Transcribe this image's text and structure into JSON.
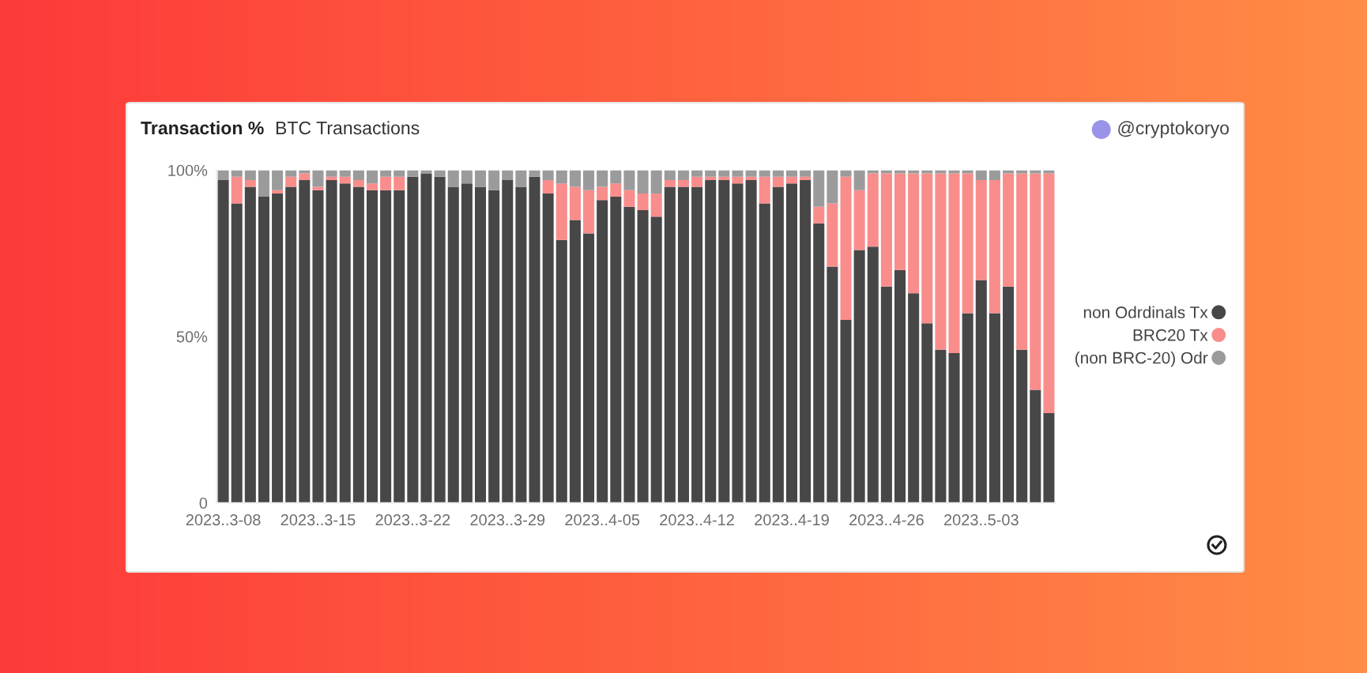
{
  "chart_data": {
    "type": "bar",
    "title": "Transaction %",
    "subtitle": "BTC Transactions",
    "annotations": [
      "@cryptokoryo"
    ],
    "categories": [
      "2023..3-08",
      null,
      null,
      null,
      null,
      null,
      null,
      "2023..3-15",
      null,
      null,
      null,
      null,
      null,
      null,
      "2023..3-22",
      null,
      null,
      null,
      null,
      null,
      null,
      "2023..3-29",
      null,
      null,
      null,
      null,
      null,
      null,
      "2023..4-05",
      null,
      null,
      null,
      null,
      null,
      null,
      "2023..4-12",
      null,
      null,
      null,
      null,
      null,
      null,
      "2023..4-19",
      null,
      null,
      null,
      null,
      null,
      null,
      "2023..4-26",
      null,
      null,
      null,
      null,
      null,
      null,
      "2023..5-03",
      null,
      null,
      null,
      null,
      null
    ],
    "series": [
      {
        "name": "non Odrdinals Tx",
        "color": "#474747",
        "values": [
          97,
          90,
          95,
          92,
          93,
          95,
          97,
          94,
          97,
          96,
          95,
          94,
          94,
          94,
          98,
          99,
          98,
          95,
          96,
          95,
          94,
          97,
          95,
          98,
          93,
          79,
          85,
          81,
          91,
          92,
          89,
          88,
          86,
          95,
          95,
          95,
          97,
          97,
          96,
          97,
          90,
          95,
          96,
          97,
          84,
          71,
          55,
          76,
          77,
          65,
          70,
          63,
          54,
          46,
          45,
          57,
          67,
          57,
          65,
          46,
          34,
          27
        ]
      },
      {
        "name": "BRC20 Tx",
        "color": "#f98d8b",
        "values": [
          0,
          8,
          2,
          0,
          1,
          3,
          2,
          1,
          1,
          2,
          2,
          2,
          4,
          4,
          0,
          0,
          0,
          0,
          0,
          0,
          0,
          0,
          0,
          0,
          4,
          17,
          10,
          13,
          4,
          4,
          5,
          5,
          7,
          2,
          2,
          3,
          1,
          1,
          2,
          1,
          8,
          3,
          2,
          1,
          5,
          19,
          43,
          18,
          22,
          34,
          29,
          36,
          45,
          53,
          54,
          42,
          30,
          40,
          34,
          53,
          65,
          72
        ]
      },
      {
        "name": "(non BRC-20) Odr",
        "color": "#9b9b9b",
        "values": [
          3,
          2,
          3,
          8,
          6,
          2,
          1,
          5,
          2,
          2,
          3,
          4,
          2,
          2,
          2,
          1,
          2,
          5,
          4,
          5,
          6,
          3,
          5,
          2,
          3,
          4,
          5,
          6,
          5,
          4,
          6,
          7,
          7,
          3,
          3,
          2,
          2,
          2,
          2,
          2,
          2,
          2,
          2,
          2,
          11,
          10,
          2,
          6,
          1,
          1,
          1,
          1,
          1,
          1,
          1,
          1,
          3,
          3,
          1,
          1,
          1,
          1
        ]
      }
    ],
    "stacked": true,
    "ylim": [
      0,
      100
    ],
    "yticks": [
      {
        "value": 100,
        "label": "100%"
      },
      {
        "value": 50,
        "label": "50%"
      },
      0
    ],
    "legend": "right"
  }
}
